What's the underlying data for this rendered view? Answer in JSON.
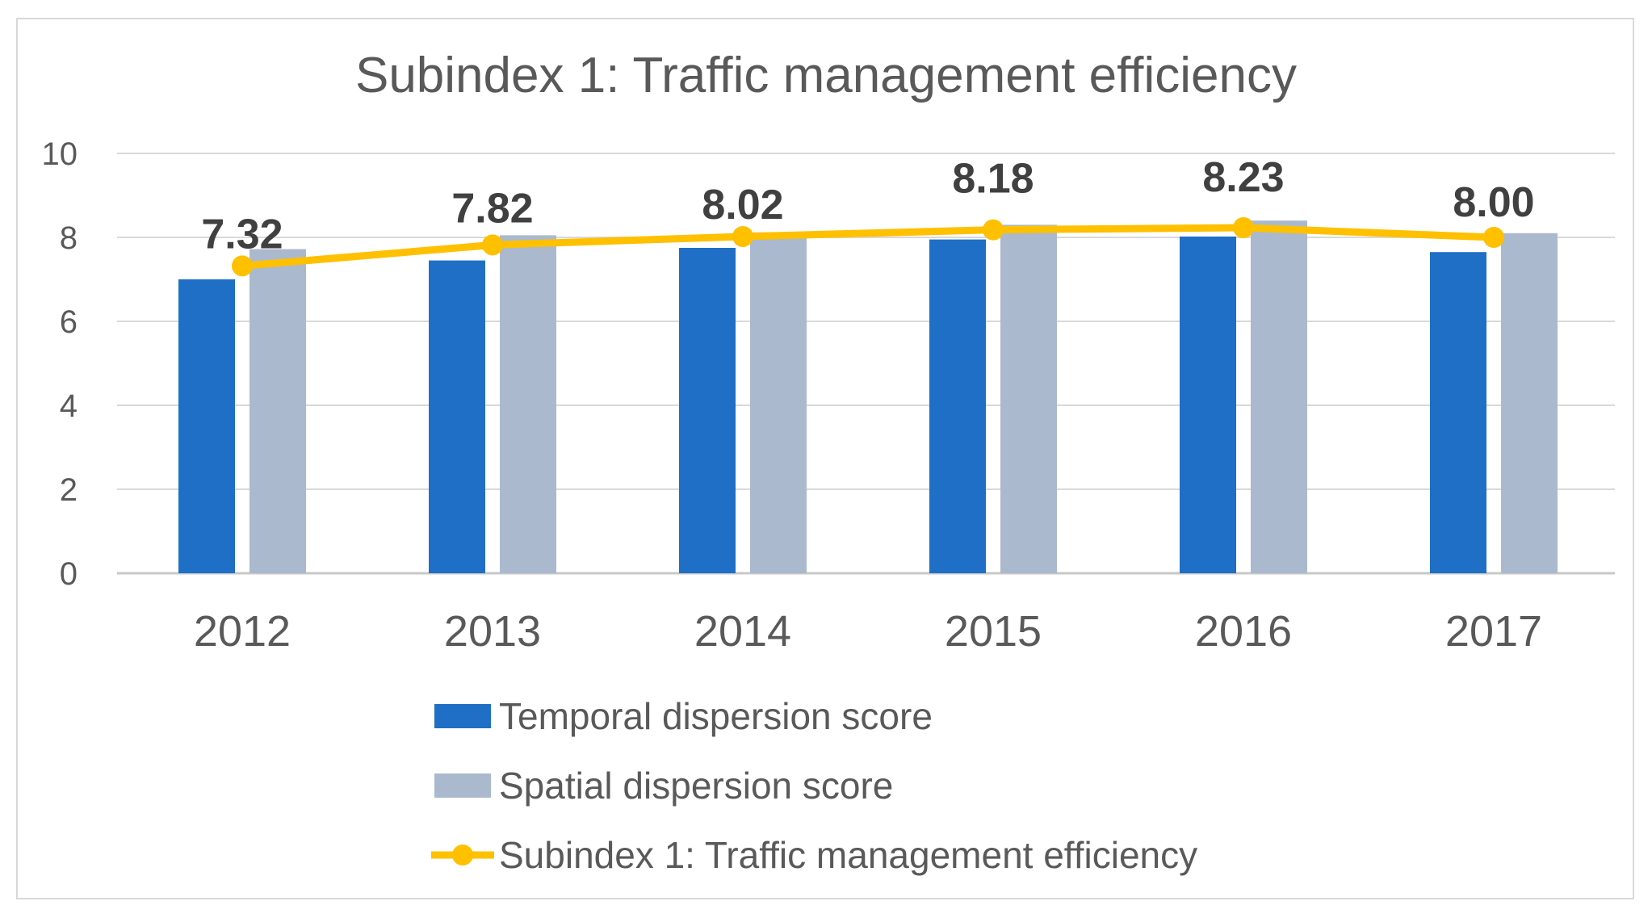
{
  "chart_data": {
    "type": "bar",
    "title": "Subindex 1: Traffic management efficiency",
    "xlabel": "",
    "ylabel": "",
    "ylim": [
      0,
      10
    ],
    "yticks": [
      0,
      2,
      4,
      6,
      8,
      10
    ],
    "grid": true,
    "legend_position": "bottom",
    "categories": [
      "2012",
      "2013",
      "2014",
      "2015",
      "2016",
      "2017"
    ],
    "series": [
      {
        "name": "Temporal dispersion score",
        "kind": "bar",
        "color": "#1f6fc6",
        "values": [
          7.0,
          7.45,
          7.75,
          7.95,
          8.02,
          7.65
        ]
      },
      {
        "name": "Spatial dispersion score",
        "kind": "bar",
        "color": "#aab9cd",
        "values": [
          7.72,
          8.05,
          8.12,
          8.3,
          8.4,
          8.1
        ]
      },
      {
        "name": "Subindex 1: Traffic management efficiency",
        "kind": "line",
        "color": "#ffc000",
        "values": [
          7.32,
          7.82,
          8.02,
          8.18,
          8.23,
          8.0
        ],
        "labels": [
          "7.32",
          "7.82",
          "8.02",
          "8.18",
          "8.23",
          "8.00"
        ]
      }
    ]
  }
}
